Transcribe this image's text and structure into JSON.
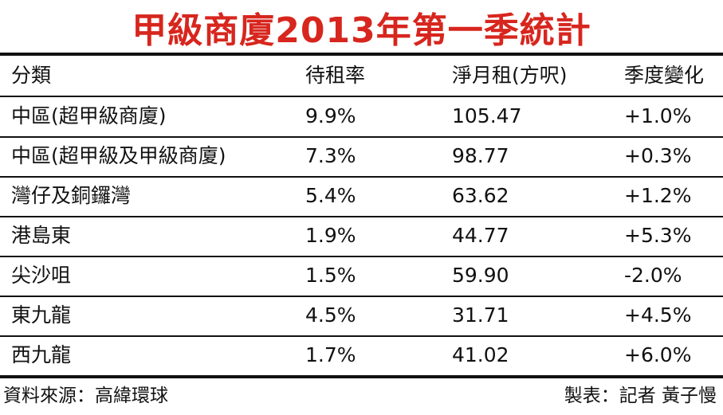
{
  "header": {
    "title": "甲級商廈2013年第一季統計"
  },
  "table": {
    "columns": [
      "分類",
      "待租率",
      "淨月租(方呎)",
      "季度變化"
    ],
    "rows": [
      [
        "中區(超甲級商廈)",
        "9.9%",
        "105.47",
        "+1.0%"
      ],
      [
        "中區(超甲級及甲級商廈)",
        "7.3%",
        "98.77",
        "+0.3%"
      ],
      [
        "灣仔及銅鑼灣",
        "5.4%",
        "63.62",
        "+1.2%"
      ],
      [
        "港島東",
        "1.9%",
        "44.77",
        "+5.3%"
      ],
      [
        "尖沙咀",
        "1.5%",
        "59.90",
        "-2.0%"
      ],
      [
        "東九龍",
        "4.5%",
        "31.71",
        "+4.5%"
      ],
      [
        "西九龍",
        "1.7%",
        "41.02",
        "+6.0%"
      ]
    ]
  },
  "footer": {
    "source": "資料來源：高緯環球",
    "credit": "製表：記者 黃子慢"
  }
}
